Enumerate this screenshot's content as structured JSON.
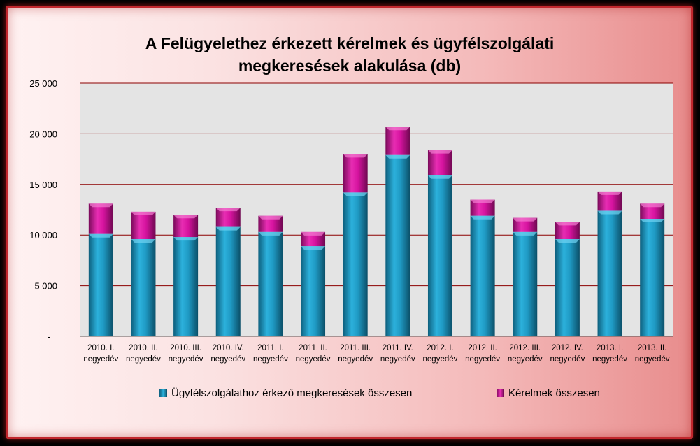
{
  "colors": {
    "series_1": "#1f9ac4",
    "series_2": "#d6139f",
    "gridline": "#8b0000",
    "plot_bg": "#e4e4e4"
  },
  "chart_data": {
    "type": "bar",
    "stacked": true,
    "title": "A Felügyelethez érkezett kérelmek és ügyfélszolgálati megkeresések alakulása (db)",
    "title_line1": "A Felügyelethez érkezett kérelmek és ügyfélszolgálati",
    "title_line2": "megkeresések alakulása (db)",
    "categories": [
      [
        "2010. I.",
        "negyedév"
      ],
      [
        "2010. II.",
        "negyedév"
      ],
      [
        "2010. III.",
        "negyedév"
      ],
      [
        "2010. IV.",
        "negyedév"
      ],
      [
        "2011. I.",
        "negyedév"
      ],
      [
        "2011. II.",
        "negyedév"
      ],
      [
        "2011. III.",
        "negyedév"
      ],
      [
        "2011. IV.",
        "negyedév"
      ],
      [
        "2012. I.",
        "negyedév"
      ],
      [
        "2012. II.",
        "negyedév"
      ],
      [
        "2012. III.",
        "negyedév"
      ],
      [
        "2012. IV.",
        "negyedév"
      ],
      [
        "2013. I.",
        "negyedév"
      ],
      [
        "2013. II.",
        "negyedév"
      ]
    ],
    "series": [
      {
        "name": "Ügyfélszolgálathoz érkező megkeresések összesen",
        "values": [
          10100,
          9600,
          9800,
          10800,
          10300,
          8900,
          14200,
          17900,
          15900,
          11900,
          10300,
          9600,
          12400,
          11600
        ]
      },
      {
        "name": "Kérelmek összesen",
        "values": [
          3000,
          2700,
          2200,
          1900,
          1600,
          1400,
          3800,
          2800,
          2500,
          1600,
          1400,
          1700,
          1900,
          1500
        ]
      }
    ],
    "yticks": [
      "-",
      "5 000",
      "10 000",
      "15 000",
      "20 000",
      "25 000"
    ],
    "ylim": [
      0,
      25000
    ],
    "grid": true,
    "legend_position": "bottom"
  }
}
